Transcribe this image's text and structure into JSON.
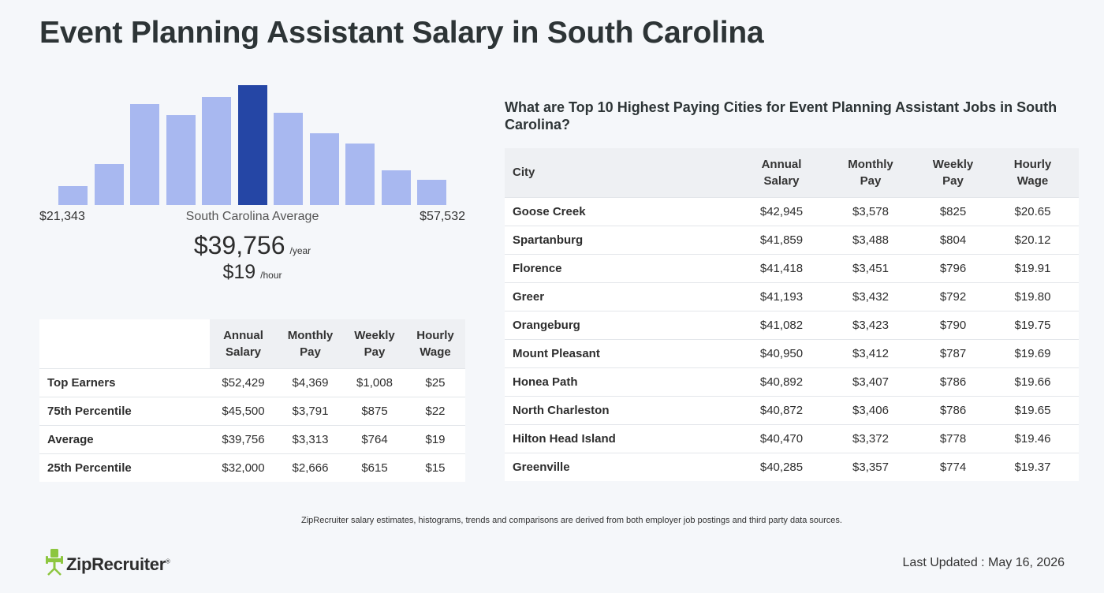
{
  "page": {
    "title": "Event Planning Assistant Salary in South Carolina"
  },
  "histogram": {
    "min_label": "$21,343",
    "max_label": "$57,532",
    "avg_label": "South Carolina Average",
    "values": [
      0.16,
      0.34,
      0.84,
      0.75,
      0.9,
      1.0,
      0.77,
      0.6,
      0.51,
      0.29,
      0.21
    ],
    "active_index": 5,
    "colors": {
      "bar": "#a8b8f0",
      "active": "#2546a5"
    }
  },
  "summary": {
    "yearly_value": "$39,756",
    "yearly_unit": "/year",
    "hourly_value": "$19",
    "hourly_unit": "/hour"
  },
  "percentile_table": {
    "headers": [
      {
        "l1": "Annual",
        "l2": "Salary"
      },
      {
        "l1": "Monthly",
        "l2": "Pay"
      },
      {
        "l1": "Weekly",
        "l2": "Pay"
      },
      {
        "l1": "Hourly",
        "l2": "Wage"
      }
    ],
    "rows": [
      {
        "label": "Top Earners",
        "annual": "$52,429",
        "monthly": "$4,369",
        "weekly": "$1,008",
        "hourly": "$25"
      },
      {
        "label": "75th Percentile",
        "annual": "$45,500",
        "monthly": "$3,791",
        "weekly": "$875",
        "hourly": "$22"
      },
      {
        "label": "Average",
        "annual": "$39,756",
        "monthly": "$3,313",
        "weekly": "$764",
        "hourly": "$19"
      },
      {
        "label": "25th Percentile",
        "annual": "$32,000",
        "monthly": "$2,666",
        "weekly": "$615",
        "hourly": "$15"
      }
    ]
  },
  "cities": {
    "heading": "What are Top 10 Highest Paying Cities for Event Planning Assistant Jobs in South Carolina?",
    "city_header": "City",
    "headers": [
      {
        "l1": "Annual",
        "l2": "Salary"
      },
      {
        "l1": "Monthly",
        "l2": "Pay"
      },
      {
        "l1": "Weekly",
        "l2": "Pay"
      },
      {
        "l1": "Hourly",
        "l2": "Wage"
      }
    ],
    "rows": [
      {
        "city": "Goose Creek",
        "annual": "$42,945",
        "monthly": "$3,578",
        "weekly": "$825",
        "hourly": "$20.65"
      },
      {
        "city": "Spartanburg",
        "annual": "$41,859",
        "monthly": "$3,488",
        "weekly": "$804",
        "hourly": "$20.12"
      },
      {
        "city": "Florence",
        "annual": "$41,418",
        "monthly": "$3,451",
        "weekly": "$796",
        "hourly": "$19.91"
      },
      {
        "city": "Greer",
        "annual": "$41,193",
        "monthly": "$3,432",
        "weekly": "$792",
        "hourly": "$19.80"
      },
      {
        "city": "Orangeburg",
        "annual": "$41,082",
        "monthly": "$3,423",
        "weekly": "$790",
        "hourly": "$19.75"
      },
      {
        "city": "Mount Pleasant",
        "annual": "$40,950",
        "monthly": "$3,412",
        "weekly": "$787",
        "hourly": "$19.69"
      },
      {
        "city": "Honea Path",
        "annual": "$40,892",
        "monthly": "$3,407",
        "weekly": "$786",
        "hourly": "$19.66"
      },
      {
        "city": "North Charleston",
        "annual": "$40,872",
        "monthly": "$3,406",
        "weekly": "$786",
        "hourly": "$19.65"
      },
      {
        "city": "Hilton Head Island",
        "annual": "$40,470",
        "monthly": "$3,372",
        "weekly": "$778",
        "hourly": "$19.46"
      },
      {
        "city": "Greenville",
        "annual": "$40,285",
        "monthly": "$3,357",
        "weekly": "$774",
        "hourly": "$19.37"
      }
    ]
  },
  "footer": {
    "footnote": "ZipRecruiter salary estimates, histograms, trends and comparisons are derived from both employer job postings and third party data sources.",
    "logo_text": "ZipRecruiter",
    "logo_mark": "®",
    "logo_icon": "ziprecruiter-chair-icon",
    "logo_color": "#8dc63f",
    "last_updated": "Last Updated : May 16, 2026"
  }
}
